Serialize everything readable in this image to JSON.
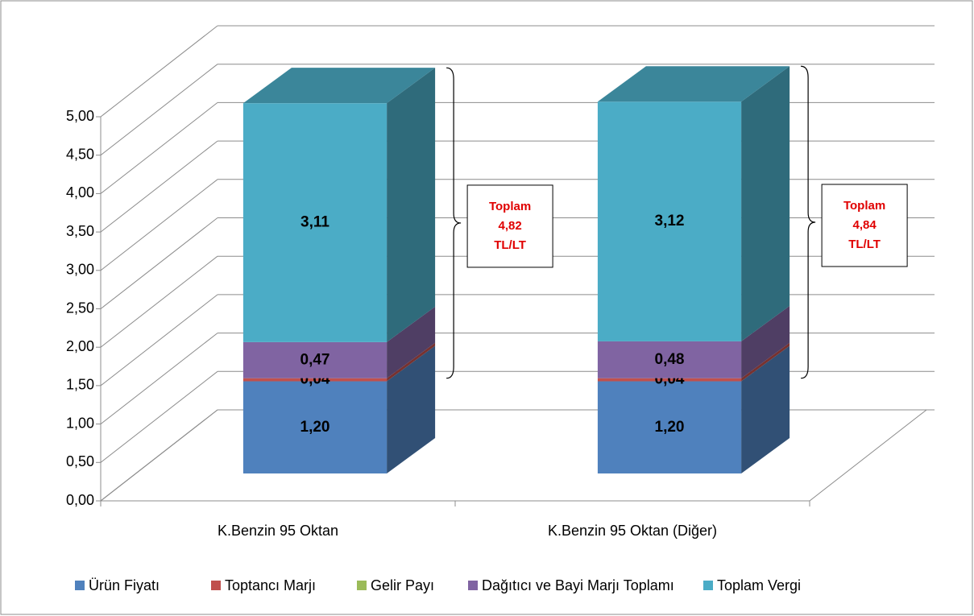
{
  "chart_data": {
    "type": "bar3d_stacked",
    "categories": [
      "K.Benzin 95 Oktan",
      "K.Benzin 95 Oktan (Diğer)"
    ],
    "series": [
      {
        "name": "Ürün Fiyatı",
        "color": "#4f81bd",
        "values": [
          1.2,
          1.2
        ],
        "value_labels": [
          "1,20",
          "1,20"
        ]
      },
      {
        "name": "Toptancı Marjı",
        "color": "#c0504d",
        "values": [
          0.04,
          0.04
        ],
        "value_labels": [
          "0,04",
          "0,04"
        ]
      },
      {
        "name": "Gelir Payı",
        "color": "#9bbb59",
        "values": [
          0,
          0
        ]
      },
      {
        "name": "Dağıtıcı ve Bayi Marjı Toplamı",
        "color": "#8064a2",
        "values": [
          0.47,
          0.48
        ],
        "value_labels": [
          "0,47",
          "0,48"
        ]
      },
      {
        "name": "Toplam Vergi",
        "color": "#4bacc6",
        "values": [
          3.11,
          3.12
        ],
        "value_labels": [
          "3,11",
          "3,12"
        ]
      }
    ],
    "ylim": [
      0,
      5
    ],
    "yticks": [
      {
        "value": 0,
        "label": "0,00"
      },
      {
        "value": 0.5,
        "label": "0,50"
      },
      {
        "value": 1,
        "label": "1,00"
      },
      {
        "value": 1.5,
        "label": "1,50"
      },
      {
        "value": 2,
        "label": "2,00"
      },
      {
        "value": 2.5,
        "label": "2,50"
      },
      {
        "value": 3,
        "label": "3,00"
      },
      {
        "value": 3.5,
        "label": "3,50"
      },
      {
        "value": 4,
        "label": "4,00"
      },
      {
        "value": 4.5,
        "label": "4,50"
      },
      {
        "value": 5,
        "label": "5,00"
      }
    ],
    "grid": true,
    "legend": "bottom",
    "annotations": [
      {
        "text": [
          "Toplam",
          "4,82",
          "TL/LT"
        ]
      },
      {
        "text": [
          "Toplam",
          "4,84",
          "TL/LT"
        ]
      }
    ]
  }
}
